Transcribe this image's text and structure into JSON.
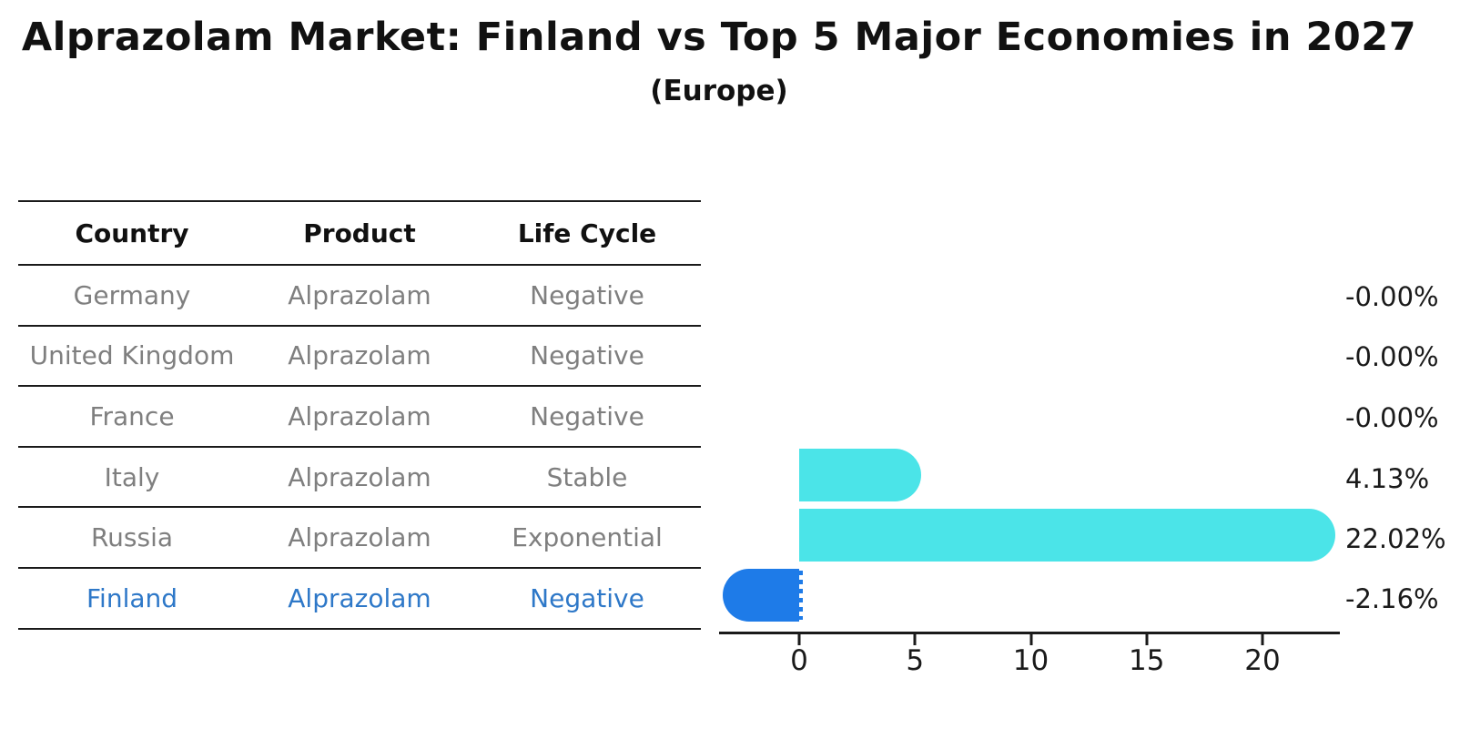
{
  "title": "Alprazolam Market: Finland vs Top 5 Major Economies in 2027",
  "subtitle": "(Europe)",
  "table": {
    "headers": [
      "Country",
      "Product",
      "Life Cycle"
    ],
    "rows": [
      {
        "country": "Germany",
        "product": "Alprazolam",
        "life_cycle": "Negative",
        "highlight": false
      },
      {
        "country": "United Kingdom",
        "product": "Alprazolam",
        "life_cycle": "Negative",
        "highlight": false
      },
      {
        "country": "France",
        "product": "Alprazolam",
        "life_cycle": "Negative",
        "highlight": false
      },
      {
        "country": "Italy",
        "product": "Alprazolam",
        "life_cycle": "Stable",
        "highlight": false
      },
      {
        "country": "Russia",
        "product": "Alprazolam",
        "life_cycle": "Exponential",
        "highlight": false
      },
      {
        "country": "Finland",
        "product": "Alprazolam",
        "life_cycle": "Negative",
        "highlight": true
      }
    ]
  },
  "chart_data": {
    "type": "bar",
    "orientation": "horizontal",
    "title": "Alprazolam Market: Finland vs Top 5 Major Economies in 2027",
    "subtitle": "(Europe)",
    "categories": [
      "Germany",
      "United Kingdom",
      "France",
      "Italy",
      "Russia",
      "Finland"
    ],
    "values": [
      -0.0,
      -0.0,
      -0.0,
      4.13,
      22.02,
      -2.16
    ],
    "value_labels": [
      "-0.00%",
      "-0.00%",
      "-0.00%",
      "4.13%",
      "22.02%",
      "-2.16%"
    ],
    "x_ticks": [
      0,
      5,
      10,
      15,
      20
    ],
    "x_tick_labels": [
      "0",
      "5",
      "10",
      "15",
      "20"
    ],
    "xlim": [
      -3.4,
      23.3
    ],
    "grid": false,
    "legend": "none",
    "bar_color": "#4be4e8",
    "highlight_color": "#1e7be8",
    "highlight_index": 5,
    "highlight_edge_style": "dashed"
  },
  "colors": {
    "table_text": "#7f7f7f",
    "header_text": "#111111",
    "highlight_text": "#2e78c8",
    "axis": "#1a1a1a"
  }
}
